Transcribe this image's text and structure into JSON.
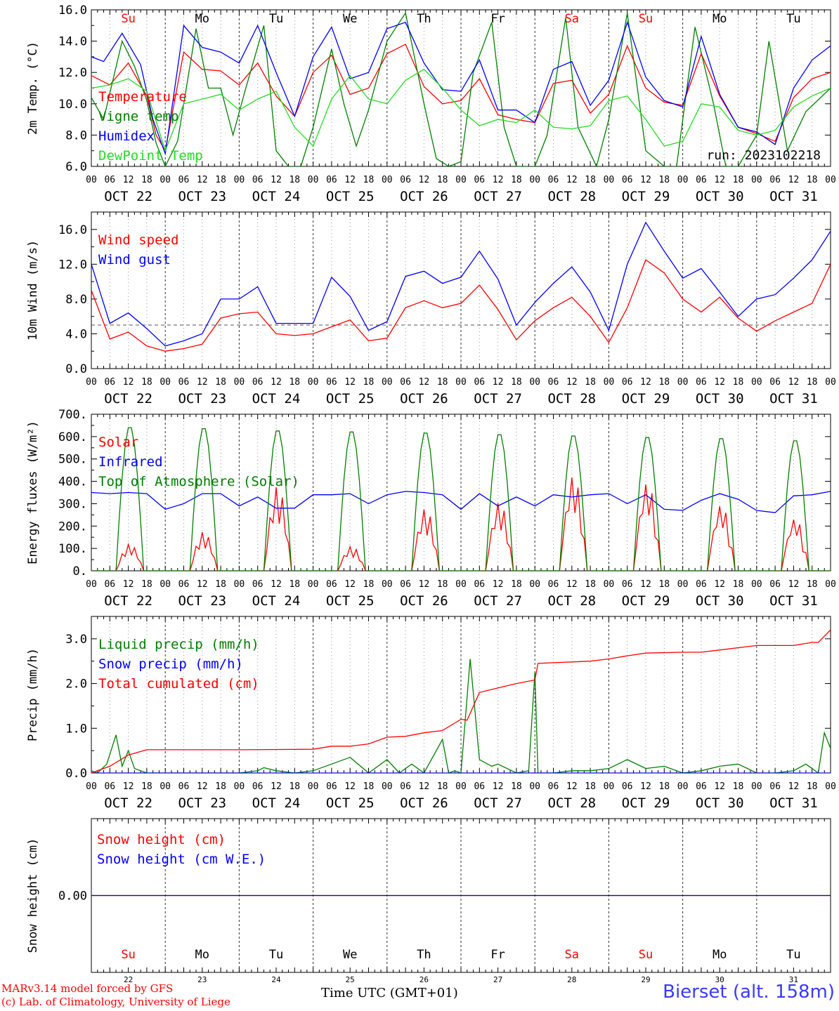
{
  "run_label": "run: 2023102218",
  "footer": {
    "model_line": "MARv3.14 model forced by GFS",
    "credit_line": "(c) Lab. of Climatology, University of Liege",
    "time_axis_label": "Time UTC (GMT+01)",
    "station": "Bierset (alt. 158m)"
  },
  "days": [
    {
      "weekday": "Su",
      "date": "OCT 22",
      "num": "22",
      "weekend": true
    },
    {
      "weekday": "Mo",
      "date": "OCT 23",
      "num": "23",
      "weekend": false
    },
    {
      "weekday": "Tu",
      "date": "OCT 24",
      "num": "24",
      "weekend": false
    },
    {
      "weekday": "We",
      "date": "OCT 25",
      "num": "25",
      "weekend": false
    },
    {
      "weekday": "Th",
      "date": "OCT 26",
      "num": "26",
      "weekend": false
    },
    {
      "weekday": "Fr",
      "date": "OCT 27",
      "num": "27",
      "weekend": false
    },
    {
      "weekday": "Sa",
      "date": "OCT 28",
      "num": "28",
      "weekend": true
    },
    {
      "weekday": "Su",
      "date": "OCT 29",
      "num": "29",
      "weekend": true
    },
    {
      "weekday": "Mo",
      "date": "OCT 30",
      "num": "30",
      "weekend": false
    },
    {
      "weekday": "Tu",
      "date": "OCT 31",
      "num": "31",
      "weekend": false
    }
  ],
  "hour_ticks": [
    "00",
    "06",
    "12",
    "18"
  ],
  "colors": {
    "red": "#ff0000",
    "blue": "#0000ff",
    "green": "#008000",
    "lightgreen": "#22dd22",
    "purple": "#800080",
    "grid": "#555555"
  },
  "chart_data": [
    {
      "type": "line",
      "ylabel": "2m Temp. (°C)",
      "ylim": [
        6,
        16
      ],
      "yticks": [
        6,
        8,
        10,
        12,
        14,
        16
      ],
      "ytick_labels": [
        "6.0",
        "8.0",
        "10.0",
        "12.0",
        "14.0",
        "16.0"
      ],
      "x_unit": "hours from 2023-10-22 00 UTC",
      "series": [
        {
          "name": "Temperature",
          "color": "#ff0000",
          "x": [
            0,
            6,
            12,
            18,
            21,
            24,
            30,
            36,
            42,
            48,
            54,
            60,
            66,
            72,
            78,
            84,
            90,
            96,
            102,
            108,
            114,
            120,
            126,
            132,
            138,
            144,
            150,
            156,
            162,
            168,
            174,
            180,
            186,
            192,
            198,
            204,
            210,
            216,
            222,
            228,
            234,
            240
          ],
          "y": [
            11.8,
            11.2,
            12.6,
            10.5,
            8.0,
            7.0,
            13.3,
            12.2,
            12.1,
            11.2,
            12.6,
            10.5,
            9.2,
            12.0,
            13.1,
            10.6,
            11.0,
            13.2,
            13.8,
            11.1,
            10.0,
            10.2,
            11.6,
            9.3,
            9.0,
            8.8,
            11.3,
            11.5,
            9.4,
            10.6,
            13.7,
            11.0,
            10.1,
            9.9,
            13.2,
            10.5,
            8.5,
            8.1,
            7.6,
            10.4,
            11.6,
            12.0
          ]
        },
        {
          "name": "Vigne temp",
          "color": "#008000",
          "x": [
            0,
            4,
            10,
            14,
            18,
            21,
            24,
            28,
            34,
            38,
            42,
            46,
            50,
            56,
            60,
            64,
            68,
            72,
            78,
            82,
            86,
            90,
            96,
            102,
            108,
            112,
            116,
            120,
            124,
            130,
            134,
            138,
            144,
            148,
            154,
            158,
            164,
            168,
            174,
            180,
            186,
            190,
            196,
            202,
            206,
            210,
            216,
            220,
            226,
            232,
            240
          ],
          "y": [
            10.4,
            9.0,
            14.0,
            12.4,
            10.2,
            7.5,
            6.0,
            7.6,
            14.8,
            11.0,
            11.0,
            8.0,
            10.9,
            15.0,
            7.0,
            6.0,
            6.0,
            8.5,
            13.5,
            10.0,
            7.3,
            9.6,
            14.0,
            15.8,
            10.0,
            6.5,
            6.0,
            6.3,
            12.0,
            15.2,
            8.5,
            6.0,
            6.0,
            8.0,
            15.5,
            8.5,
            6.0,
            9.0,
            15.8,
            7.0,
            6.0,
            6.0,
            14.9,
            10.0,
            6.0,
            6.0,
            8.0,
            14.0,
            7.0,
            9.5,
            11.0
          ]
        },
        {
          "name": "Humidex",
          "color": "#0000ff",
          "x": [
            0,
            4,
            10,
            16,
            20,
            24,
            30,
            36,
            42,
            48,
            54,
            60,
            66,
            72,
            78,
            84,
            90,
            96,
            102,
            108,
            114,
            120,
            126,
            132,
            138,
            144,
            150,
            156,
            162,
            168,
            174,
            180,
            186,
            192,
            198,
            204,
            210,
            216,
            222,
            228,
            234,
            240
          ],
          "y": [
            13.0,
            12.7,
            14.5,
            12.5,
            9.0,
            6.8,
            15.0,
            13.6,
            13.3,
            12.6,
            15.0,
            12.0,
            9.2,
            13.0,
            14.9,
            11.6,
            12.0,
            14.8,
            15.2,
            12.6,
            10.9,
            10.8,
            12.8,
            9.6,
            9.6,
            8.8,
            12.2,
            12.7,
            9.9,
            11.5,
            15.2,
            11.7,
            10.2,
            9.8,
            14.3,
            10.6,
            8.5,
            8.2,
            7.4,
            11.0,
            12.8,
            13.7
          ]
        },
        {
          "name": "DewPoint Temp",
          "color": "#22dd22",
          "x": [
            0,
            6,
            12,
            18,
            24,
            30,
            36,
            42,
            48,
            54,
            60,
            66,
            72,
            78,
            84,
            90,
            96,
            102,
            108,
            114,
            120,
            126,
            132,
            138,
            144,
            150,
            156,
            162,
            168,
            174,
            180,
            186,
            192,
            198,
            204,
            210,
            216,
            222,
            228,
            234,
            240
          ],
          "y": [
            11.0,
            11.2,
            11.6,
            10.8,
            7.0,
            10.0,
            10.3,
            10.6,
            9.6,
            10.3,
            10.8,
            8.5,
            7.3,
            10.3,
            11.8,
            10.3,
            10.0,
            11.5,
            12.2,
            11.0,
            9.6,
            8.6,
            9.0,
            8.8,
            9.6,
            8.5,
            8.4,
            8.6,
            10.2,
            10.5,
            9.0,
            7.3,
            7.6,
            10.0,
            9.8,
            8.3,
            8.0,
            8.3,
            9.8,
            10.5,
            11.0
          ]
        }
      ],
      "annotation": "run: 2023102218"
    },
    {
      "type": "line",
      "ylabel": "10m Wind (m/s)",
      "ylim": [
        0,
        18
      ],
      "yticks": [
        0,
        4,
        8,
        12,
        16
      ],
      "ytick_labels": [
        "0.0",
        "4.0",
        "8.0",
        "12.0",
        "16.0"
      ],
      "reference_line": 5,
      "series": [
        {
          "name": "Wind speed",
          "color": "#ff0000",
          "x": [
            0,
            6,
            12,
            18,
            24,
            30,
            36,
            42,
            48,
            54,
            60,
            66,
            72,
            78,
            84,
            90,
            96,
            102,
            108,
            114,
            120,
            126,
            132,
            138,
            144,
            150,
            156,
            162,
            168,
            174,
            180,
            186,
            192,
            198,
            204,
            210,
            216,
            222,
            228,
            234,
            240
          ],
          "y": [
            9.0,
            3.4,
            4.2,
            2.6,
            2.0,
            2.3,
            2.8,
            5.8,
            6.3,
            6.5,
            4.0,
            3.8,
            4.0,
            4.8,
            5.6,
            3.2,
            3.5,
            7.0,
            7.8,
            7.0,
            7.5,
            9.6,
            6.8,
            3.3,
            5.5,
            7.0,
            8.2,
            6.0,
            3.0,
            7.0,
            12.5,
            11.0,
            8.0,
            6.5,
            8.2,
            5.8,
            4.3,
            5.5,
            6.5,
            7.5,
            12.0
          ]
        },
        {
          "name": "Wind gust",
          "color": "#0000ff",
          "x": [
            0,
            6,
            12,
            18,
            24,
            30,
            36,
            42,
            48,
            54,
            60,
            66,
            72,
            78,
            84,
            90,
            96,
            102,
            108,
            114,
            120,
            126,
            132,
            138,
            144,
            150,
            156,
            162,
            168,
            174,
            180,
            186,
            192,
            198,
            204,
            210,
            216,
            222,
            228,
            234,
            240
          ],
          "y": [
            12.0,
            5.2,
            6.4,
            4.6,
            2.6,
            3.2,
            4.0,
            8.0,
            8.0,
            9.4,
            5.2,
            5.2,
            5.2,
            10.5,
            8.3,
            4.4,
            5.4,
            10.6,
            11.2,
            9.8,
            10.5,
            13.5,
            10.3,
            5.0,
            7.6,
            9.8,
            11.7,
            8.8,
            4.4,
            12.0,
            16.8,
            13.5,
            10.4,
            11.5,
            8.8,
            6.0,
            8.0,
            8.5,
            10.4,
            12.5,
            15.8
          ]
        }
      ]
    },
    {
      "type": "line",
      "ylabel": "Energy fluxes (W/m²)",
      "ylim": [
        0,
        700
      ],
      "yticks": [
        0,
        100,
        200,
        300,
        400,
        500,
        600,
        700
      ],
      "ytick_labels": [
        "0.",
        "100.",
        "200.",
        "300.",
        "400.",
        "500.",
        "600.",
        "700."
      ],
      "diurnal": {
        "toa_peak": [
          650,
          645,
          635,
          630,
          625,
          618,
          612,
          605,
          600,
          590
        ],
        "solar_peak": [
          120,
          175,
          380,
          110,
          280,
          310,
          430,
          400,
          300,
          240
        ],
        "sunrise_hour": 8,
        "sunset_hour": 17
      },
      "series": [
        {
          "name": "Solar",
          "color": "#ff0000"
        },
        {
          "name": "Infrared",
          "color": "#0000ff",
          "x": [
            0,
            6,
            12,
            18,
            24,
            30,
            36,
            42,
            48,
            54,
            60,
            66,
            72,
            78,
            84,
            90,
            96,
            102,
            108,
            114,
            120,
            126,
            132,
            138,
            144,
            150,
            156,
            162,
            168,
            174,
            180,
            186,
            192,
            198,
            204,
            210,
            216,
            222,
            228,
            234,
            240
          ],
          "y": [
            350,
            345,
            350,
            345,
            275,
            300,
            345,
            345,
            290,
            330,
            280,
            280,
            340,
            340,
            345,
            300,
            340,
            355,
            350,
            340,
            275,
            345,
            290,
            330,
            290,
            340,
            330,
            340,
            345,
            300,
            340,
            275,
            270,
            315,
            345,
            320,
            270,
            260,
            335,
            340,
            355
          ]
        },
        {
          "name": "Top of Atmosphere (Solar)",
          "color": "#008000"
        }
      ]
    },
    {
      "type": "line",
      "ylabel": "Precip (mm/h)",
      "ylim": [
        0,
        3.5
      ],
      "yticks": [
        0,
        1,
        2,
        3
      ],
      "ytick_labels": [
        "0.0",
        "1.0",
        "2.0",
        "3.0"
      ],
      "series": [
        {
          "name": "Liquid precip (mm/h)",
          "color": "#008000",
          "x": [
            0,
            2,
            5,
            8,
            10,
            12,
            14,
            16,
            18,
            24,
            48,
            54,
            56,
            60,
            66,
            72,
            78,
            84,
            90,
            96,
            100,
            104,
            108,
            114,
            116,
            118,
            120,
            123,
            126,
            130,
            132,
            138,
            142,
            144,
            145,
            147,
            150,
            156,
            162,
            168,
            174,
            180,
            186,
            192,
            198,
            204,
            210,
            216,
            222,
            228,
            232,
            236,
            238,
            240
          ],
          "y": [
            0.05,
            0,
            0.2,
            0.85,
            0.15,
            0.5,
            0.1,
            0.05,
            0,
            0,
            0,
            0.05,
            0.12,
            0.05,
            0,
            0.05,
            0.2,
            0.35,
            0,
            0.3,
            0,
            0.2,
            0,
            0.75,
            0,
            0.05,
            0,
            2.55,
            0.3,
            0.15,
            0.2,
            0,
            0.05,
            2.25,
            0,
            0,
            0,
            0.05,
            0.05,
            0.1,
            0.3,
            0.1,
            0.15,
            0,
            0.05,
            0.15,
            0.2,
            0,
            0,
            0.05,
            0.2,
            0,
            0.9,
            0.55
          ]
        },
        {
          "name": "Snow precip (mm/h)",
          "color": "#0000ff",
          "x": [
            0,
            240
          ],
          "y": [
            0,
            0
          ]
        },
        {
          "name": "Total cumulated (cm)",
          "color": "#ff0000",
          "x": [
            0,
            6,
            12,
            18,
            24,
            48,
            72,
            78,
            84,
            90,
            96,
            102,
            108,
            114,
            120,
            122,
            126,
            132,
            138,
            144,
            145,
            162,
            168,
            174,
            180,
            192,
            198,
            204,
            216,
            228,
            234,
            236,
            240
          ],
          "y": [
            0,
            0.15,
            0.4,
            0.52,
            0.52,
            0.52,
            0.53,
            0.6,
            0.6,
            0.65,
            0.8,
            0.82,
            0.9,
            0.95,
            1.2,
            1.18,
            1.8,
            1.9,
            2.0,
            2.08,
            2.45,
            2.5,
            2.55,
            2.62,
            2.68,
            2.7,
            2.7,
            2.75,
            2.85,
            2.85,
            2.92,
            2.92,
            3.2
          ]
        }
      ]
    },
    {
      "type": "line",
      "ylabel": "Snow height (cm)",
      "ylim": [
        -1,
        1
      ],
      "yticks": [
        0
      ],
      "ytick_labels": [
        "0.00"
      ],
      "series": [
        {
          "name": "Snow height (cm)",
          "color": "#ff0000",
          "x": [
            0,
            240
          ],
          "y": [
            0,
            0
          ]
        },
        {
          "name": "Snow height (cm W.E.)",
          "color": "#0000ff",
          "x": [
            0,
            240
          ],
          "y": [
            0,
            0
          ]
        }
      ]
    }
  ]
}
